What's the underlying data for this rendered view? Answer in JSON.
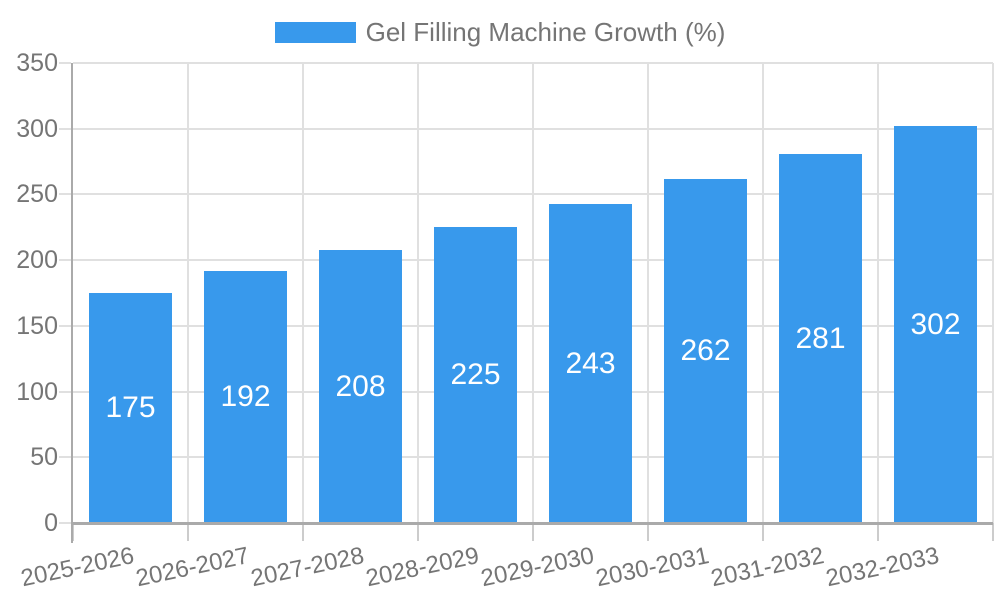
{
  "chart_data": {
    "type": "bar",
    "title": "",
    "categories": [
      "2025-2026",
      "2026-2027",
      "2027-2028",
      "2028-2029",
      "2029-2030",
      "2030-2031",
      "2031-2032",
      "2032-2033"
    ],
    "series": [
      {
        "name": "Gel Filling Machine Growth (%)",
        "values": [
          175,
          192,
          208,
          225,
          243,
          262,
          281,
          302
        ]
      }
    ],
    "xlabel": "",
    "ylabel": "",
    "ylim": [
      0,
      350
    ],
    "ytick_step": 50,
    "ytick_labels": [
      "0",
      "50",
      "100",
      "150",
      "200",
      "250",
      "300",
      "350"
    ],
    "grid": "horizontal and vertical light gridlines",
    "legend_position": "top-center",
    "bar_label_position": "inside-center",
    "x_label_rotation_deg": -12,
    "colors": {
      "bar": "#3899ec",
      "bar_value_text": "#ffffff",
      "axis_text": "#757575",
      "axis_line": "#aaaaaa",
      "gridline": "#e0e0e0",
      "x_tick": "#cccccc",
      "background": "#ffffff"
    }
  }
}
